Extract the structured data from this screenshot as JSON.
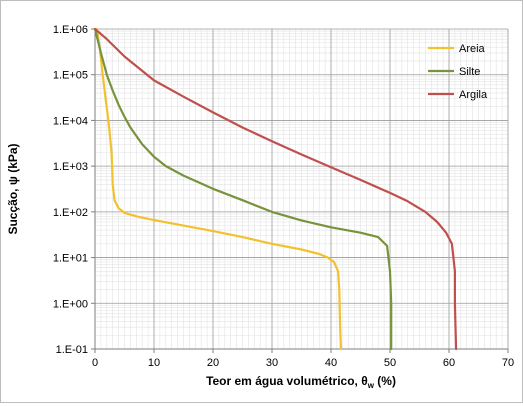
{
  "chart_data": {
    "type": "line",
    "title": "",
    "xlabel": "Teor em água volumétrico, θ",
    "xlabel_sub": "w",
    "xlabel_suffix": " (%)",
    "ylabel": "Sucção, ψ (kPa)",
    "xlim": [
      0,
      70
    ],
    "ylim": [
      0.1,
      1000000
    ],
    "yscale": "log",
    "x_ticks": [
      0,
      10,
      20,
      30,
      40,
      50,
      60,
      70
    ],
    "x_tick_labels": [
      "0",
      "10",
      "20",
      "30",
      "40",
      "50",
      "60",
      "70"
    ],
    "y_ticks": [
      0.1,
      1,
      10,
      100,
      1000,
      10000,
      100000,
      1000000
    ],
    "y_tick_labels": [
      "1.E-01",
      "1.E+00",
      "1.E+01",
      "1.E+02",
      "1.E+03",
      "1.E+04",
      "1.E+05",
      "1.E+06"
    ],
    "grid": true,
    "legend_position": "top-right",
    "series": [
      {
        "name": "Areia",
        "color": "#f2c12e",
        "x": [
          0.3,
          0.8,
          1.3,
          1.8,
          2.3,
          2.6,
          2.8,
          2.9,
          3.0,
          3.3,
          4.0,
          5.0,
          7.0,
          10,
          15,
          20,
          25,
          30,
          35,
          38,
          39.5,
          40.5,
          41.2,
          41.4,
          41.5,
          41.6,
          41.7
        ],
        "y": [
          1000000,
          400000,
          100000,
          30000,
          9000,
          4000,
          2000,
          1000,
          400,
          180,
          120,
          95,
          80,
          66,
          50,
          38,
          28,
          20,
          15,
          12,
          10,
          8,
          5,
          2,
          0.5,
          0.2,
          0.1
        ]
      },
      {
        "name": "Silte",
        "color": "#77933c",
        "x": [
          0,
          1,
          2,
          3,
          4,
          5,
          6,
          8,
          10,
          12,
          15,
          20,
          25,
          30,
          35,
          40,
          45,
          48,
          49.5,
          50.0,
          50.2,
          50.2,
          50.2
        ],
        "y": [
          1000000,
          300000,
          100000,
          45000,
          22000,
          12000,
          7000,
          3000,
          1600,
          1000,
          620,
          320,
          180,
          100,
          65,
          46,
          35,
          28,
          18,
          5,
          1,
          0.3,
          0.1
        ]
      },
      {
        "name": "Argila",
        "color": "#c0504d",
        "x": [
          0,
          2,
          5,
          10,
          15,
          20,
          25,
          30,
          35,
          40,
          45,
          50,
          53,
          56,
          58,
          59.5,
          60.5,
          61.0,
          61.0,
          61.1,
          61.2
        ],
        "y": [
          1000000,
          600000,
          250000,
          75000,
          33000,
          15000,
          7000,
          3500,
          1800,
          950,
          500,
          260,
          170,
          100,
          60,
          35,
          20,
          5,
          1,
          0.3,
          0.1
        ]
      }
    ]
  }
}
